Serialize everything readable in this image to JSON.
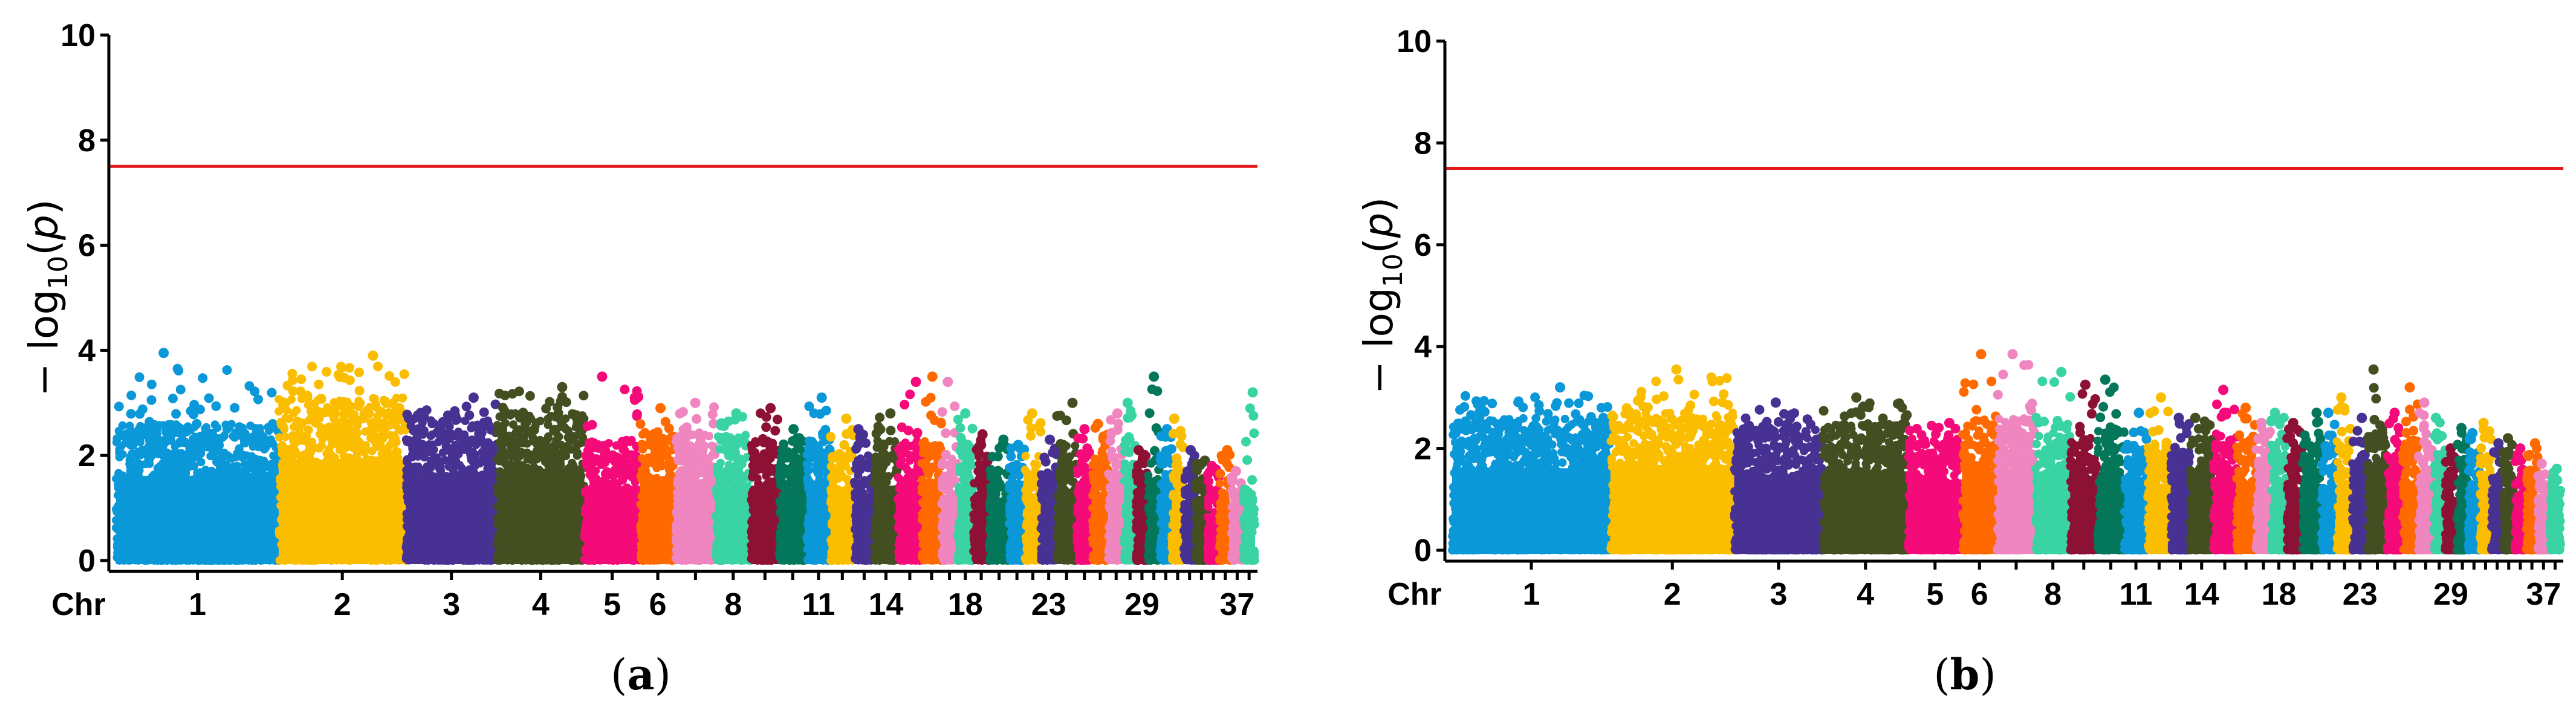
{
  "chart_data": [
    {
      "type": "scatter",
      "subtype": "manhattan",
      "panel_label": "(a)",
      "panel_letter": "a",
      "ylabel_prefix": "− log",
      "ylabel_sub": "10",
      "ylabel_suffix": "(p)",
      "ylabel_p": "p",
      "xlabel": "Chr",
      "ylim": [
        0,
        10
      ],
      "yticks": [
        0,
        2,
        4,
        6,
        8,
        10
      ],
      "threshold": 7.5,
      "threshold_color": "#e31a1c",
      "chromosomes": [
        1,
        2,
        3,
        4,
        5,
        6,
        7,
        8,
        9,
        10,
        11,
        12,
        13,
        14,
        15,
        16,
        17,
        18,
        19,
        20,
        21,
        22,
        23,
        24,
        25,
        26,
        27,
        28,
        29,
        30,
        31,
        32,
        33,
        34,
        35,
        36,
        37,
        38
      ],
      "chr_widths": [
        4.1,
        3.2,
        2.3,
        2.2,
        1.4,
        0.9,
        1.0,
        0.9,
        0.7,
        0.7,
        0.6,
        0.6,
        0.5,
        0.6,
        0.6,
        0.5,
        0.4,
        0.4,
        0.4,
        0.5,
        0.4,
        0.4,
        0.4,
        0.5,
        0.4,
        0.4,
        0.4,
        0.3,
        0.3,
        0.3,
        0.3,
        0.3,
        0.3,
        0.3,
        0.3,
        0.3,
        0.3,
        0.3
      ],
      "chr_peaks": [
        3.95,
        3.9,
        3.1,
        3.3,
        3.5,
        2.9,
        3.0,
        2.8,
        2.9,
        2.5,
        3.1,
        2.7,
        2.5,
        2.8,
        3.4,
        3.5,
        3.4,
        2.8,
        2.4,
        2.3,
        2.2,
        2.8,
        2.3,
        3.0,
        2.5,
        2.6,
        2.8,
        3.0,
        2.1,
        3.5,
        2.5,
        2.7,
        2.1,
        1.9,
        1.8,
        2.1,
        1.7,
        3.2
      ],
      "chr_base": [
        2.6,
        3.1,
        2.7,
        2.8,
        2.3,
        2.4,
        2.5,
        2.4,
        2.3,
        2.1,
        2.4,
        2.1,
        2.0,
        2.3,
        2.3,
        2.3,
        2.0,
        2.2,
        2.0,
        1.9,
        1.8,
        2.0,
        1.7,
        2.2,
        2.0,
        2.1,
        2.2,
        2.3,
        1.7,
        2.0,
        2.0,
        1.9,
        1.6,
        1.6,
        1.4,
        1.6,
        1.3,
        1.4
      ],
      "tick_labels": [
        "1",
        "2",
        "3",
        "4",
        "5",
        "6",
        "8",
        "11",
        "14",
        "18",
        "23",
        "29",
        "37"
      ],
      "tick_chr": [
        1,
        2,
        3,
        4,
        5,
        6,
        8,
        11,
        14,
        18,
        23,
        29,
        37
      ]
    },
    {
      "type": "scatter",
      "subtype": "manhattan",
      "panel_label": "(b)",
      "panel_letter": "b",
      "ylabel_prefix": "− log",
      "ylabel_sub": "10",
      "ylabel_suffix": "(p)",
      "ylabel_p": "p",
      "xlabel": "Chr",
      "ylim": [
        0,
        10
      ],
      "yticks": [
        0,
        2,
        4,
        6,
        8,
        10
      ],
      "threshold": 7.5,
      "threshold_color": "#e31a1c",
      "chromosomes": [
        1,
        2,
        3,
        4,
        5,
        6,
        7,
        8,
        9,
        10,
        11,
        12,
        13,
        14,
        15,
        16,
        17,
        18,
        19,
        20,
        21,
        22,
        23,
        24,
        25,
        26,
        27,
        28,
        29,
        30,
        31,
        32,
        33,
        34,
        35,
        36,
        37,
        38
      ],
      "chr_widths": [
        4.1,
        3.2,
        2.3,
        2.2,
        1.4,
        0.9,
        1.0,
        0.9,
        0.7,
        0.7,
        0.6,
        0.6,
        0.5,
        0.6,
        0.6,
        0.5,
        0.4,
        0.4,
        0.4,
        0.5,
        0.4,
        0.4,
        0.4,
        0.5,
        0.4,
        0.4,
        0.4,
        0.3,
        0.3,
        0.3,
        0.3,
        0.3,
        0.3,
        0.3,
        0.3,
        0.3,
        0.3,
        0.3
      ],
      "chr_peaks": [
        3.2,
        3.55,
        2.9,
        3.0,
        2.5,
        3.85,
        3.85,
        3.5,
        3.25,
        3.35,
        2.7,
        3.0,
        2.6,
        2.6,
        3.15,
        2.8,
        2.5,
        2.7,
        2.5,
        2.7,
        2.7,
        3.0,
        2.6,
        3.55,
        2.7,
        3.2,
        2.9,
        2.6,
        2.0,
        2.4,
        2.3,
        2.5,
        2.1,
        2.2,
        2.0,
        2.1,
        1.7,
        1.6
      ],
      "chr_base": [
        2.6,
        2.7,
        2.4,
        2.5,
        2.2,
        2.6,
        2.6,
        2.5,
        2.2,
        2.4,
        2.0,
        2.1,
        2.0,
        2.2,
        2.3,
        2.2,
        2.0,
        2.2,
        2.0,
        2.1,
        2.0,
        2.2,
        1.9,
        2.3,
        2.0,
        2.2,
        2.1,
        2.0,
        1.6,
        1.8,
        1.8,
        1.9,
        1.6,
        1.7,
        1.5,
        1.6,
        1.3,
        1.2
      ],
      "tick_labels": [
        "1",
        "2",
        "3",
        "4",
        "5",
        "6",
        "8",
        "11",
        "14",
        "18",
        "23",
        "29",
        "37"
      ],
      "tick_chr": [
        1,
        2,
        3,
        4,
        5,
        6,
        8,
        11,
        14,
        18,
        23,
        29,
        37
      ]
    }
  ],
  "colors": {
    "palette": [
      "#0a98d8",
      "#fbbd00",
      "#473192",
      "#434e21",
      "#f50a79",
      "#ff6a00",
      "#ef86c0",
      "#39d3a4",
      "#8d1135",
      "#04765a"
    ],
    "axis": "#000000",
    "background": "#ffffff"
  }
}
